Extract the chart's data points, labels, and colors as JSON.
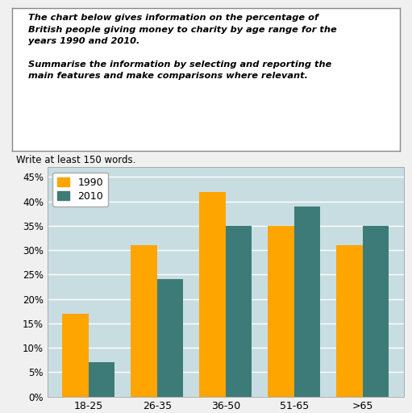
{
  "categories": [
    "18-25",
    "26-35",
    "36-50",
    "51-65",
    ">65"
  ],
  "values_1990": [
    17,
    31,
    42,
    35,
    31
  ],
  "values_2010": [
    7,
    24,
    35,
    39,
    35
  ],
  "color_1990": "#FFA500",
  "color_2010": "#3D7B78",
  "legend_labels": [
    "1990",
    "2010"
  ],
  "yticks": [
    0,
    5,
    10,
    15,
    20,
    25,
    30,
    35,
    40,
    45
  ],
  "ylim": [
    0,
    47
  ],
  "bar_width": 0.38,
  "title_line1": "The chart below gives information on the percentage of",
  "title_line2": "British people giving money to charity by age range for the",
  "title_line3": "years 1990 and 2010.",
  "title_line4": "",
  "title_line5": "Summarise the information by selecting and reporting the",
  "title_line6": "main features and make comparisons where relevant.",
  "subtitle": "Write at least 150 words.",
  "chart_bg": "#C8DDE2",
  "figure_bg": "#F0F0F0",
  "grid_color": "#FFFFFF",
  "border_color": "#888888",
  "text_box_bg": "#FFFFFF"
}
